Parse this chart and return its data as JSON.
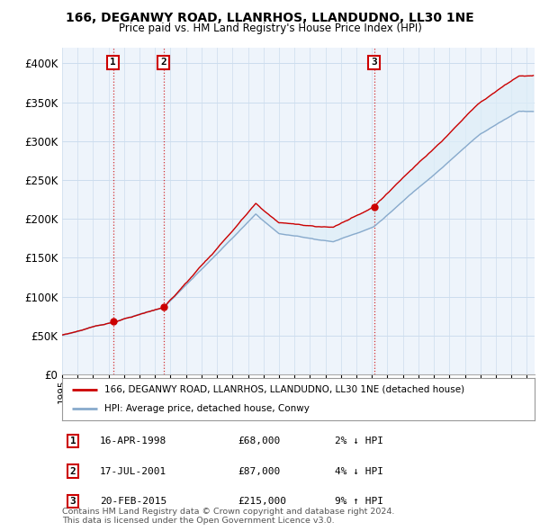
{
  "title": "166, DEGANWY ROAD, LLANRHOS, LLANDUDNO, LL30 1NE",
  "subtitle": "Price paid vs. HM Land Registry's House Price Index (HPI)",
  "legend_line1": "166, DEGANWY ROAD, LLANRHOS, LLANDUDNO, LL30 1NE (detached house)",
  "legend_line2": "HPI: Average price, detached house, Conwy",
  "line_color_property": "#cc0000",
  "line_color_hpi": "#88aacc",
  "fill_color": "#ddeeff",
  "sale_prices": [
    68000,
    87000,
    215000
  ],
  "sale_labels": [
    "1",
    "2",
    "3"
  ],
  "sale_year_floats": [
    1998.29,
    2001.54,
    2015.13
  ],
  "sale_info": [
    {
      "label": "1",
      "date": "16-APR-1998",
      "price": "£68,000",
      "pct": "2%",
      "dir": "↓",
      "vs": "HPI"
    },
    {
      "label": "2",
      "date": "17-JUL-2001",
      "price": "£87,000",
      "pct": "4%",
      "dir": "↓",
      "vs": "HPI"
    },
    {
      "label": "3",
      "date": "20-FEB-2015",
      "price": "£215,000",
      "pct": "9%",
      "dir": "↑",
      "vs": "HPI"
    }
  ],
  "vline_color": "#cc0000",
  "ylim": [
    0,
    420000
  ],
  "yticks": [
    0,
    50000,
    100000,
    150000,
    200000,
    250000,
    300000,
    350000,
    400000
  ],
  "xlim_start": 1995.0,
  "xlim_end": 2025.5,
  "background_color": "#ffffff",
  "grid_color": "#ccddee",
  "footnote": "Contains HM Land Registry data © Crown copyright and database right 2024.\nThis data is licensed under the Open Government Licence v3.0."
}
